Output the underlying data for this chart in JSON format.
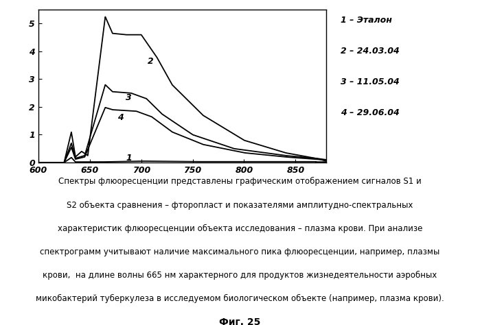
{
  "xlim": [
    600,
    880
  ],
  "ylim": [
    0,
    5.5
  ],
  "xticks": [
    600,
    650,
    700,
    750,
    800,
    850
  ],
  "yticks": [
    0,
    1,
    2,
    3,
    4,
    5
  ],
  "legend_labels": [
    "1 – Эталон",
    "2 – 24.03.04",
    "3 – 11.05.04",
    "4 – 29.06.04"
  ],
  "line_color": "#000000",
  "bg_color": "#ffffff",
  "caption_line1": "Спектры флюоресценции представлены графическим отображением сигналов S1 и",
  "caption_line2": "S2 объекта сравнения – фторопласт и показателями амплитудно-спектральных",
  "caption_line3": "характеристик флюоресценции объекта исследования – плазма крови. При анализе",
  "caption_line4": "спектрограмм учитывают наличие максимального пика флюоресценции, например, плазмы",
  "caption_line5": "крови,  на длине волны 665 нм характерного для продуктов жизнедеятельности аэробных",
  "caption_line6": "микобактерий туберкулеза в исследуемом биологическом объекте (например, плазма крови).",
  "fig_caption": "Фиг. 25"
}
